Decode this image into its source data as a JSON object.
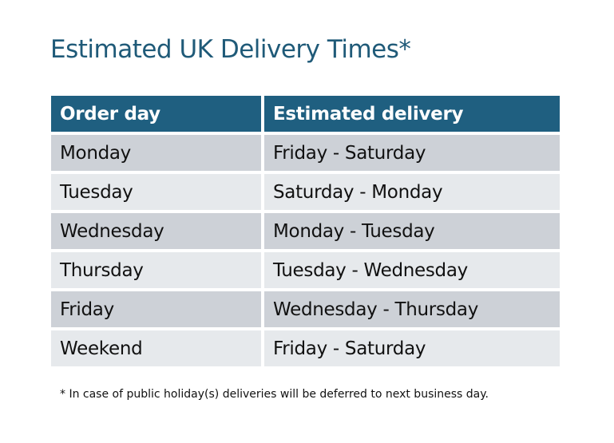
{
  "title": "Estimated UK Delivery Times*",
  "table": {
    "headers": [
      "Order day",
      "Estimated delivery"
    ],
    "rows": [
      [
        "Monday",
        "Friday - Saturday"
      ],
      [
        "Tuesday",
        "Saturday - Monday"
      ],
      [
        "Wednesday",
        "Monday - Tuesday"
      ],
      [
        "Thursday",
        "Tuesday - Wednesday"
      ],
      [
        "Friday",
        "Wednesday - Thursday"
      ],
      [
        "Weekend",
        "Friday - Saturday"
      ]
    ]
  },
  "footnote": "* In case of public holiday(s) deliveries will be deferred to next business day.",
  "colors": {
    "header": "#1f5f80",
    "title": "#1f5a78",
    "row_dark": "#cdd1d7",
    "row_light": "#e6e9ec"
  }
}
